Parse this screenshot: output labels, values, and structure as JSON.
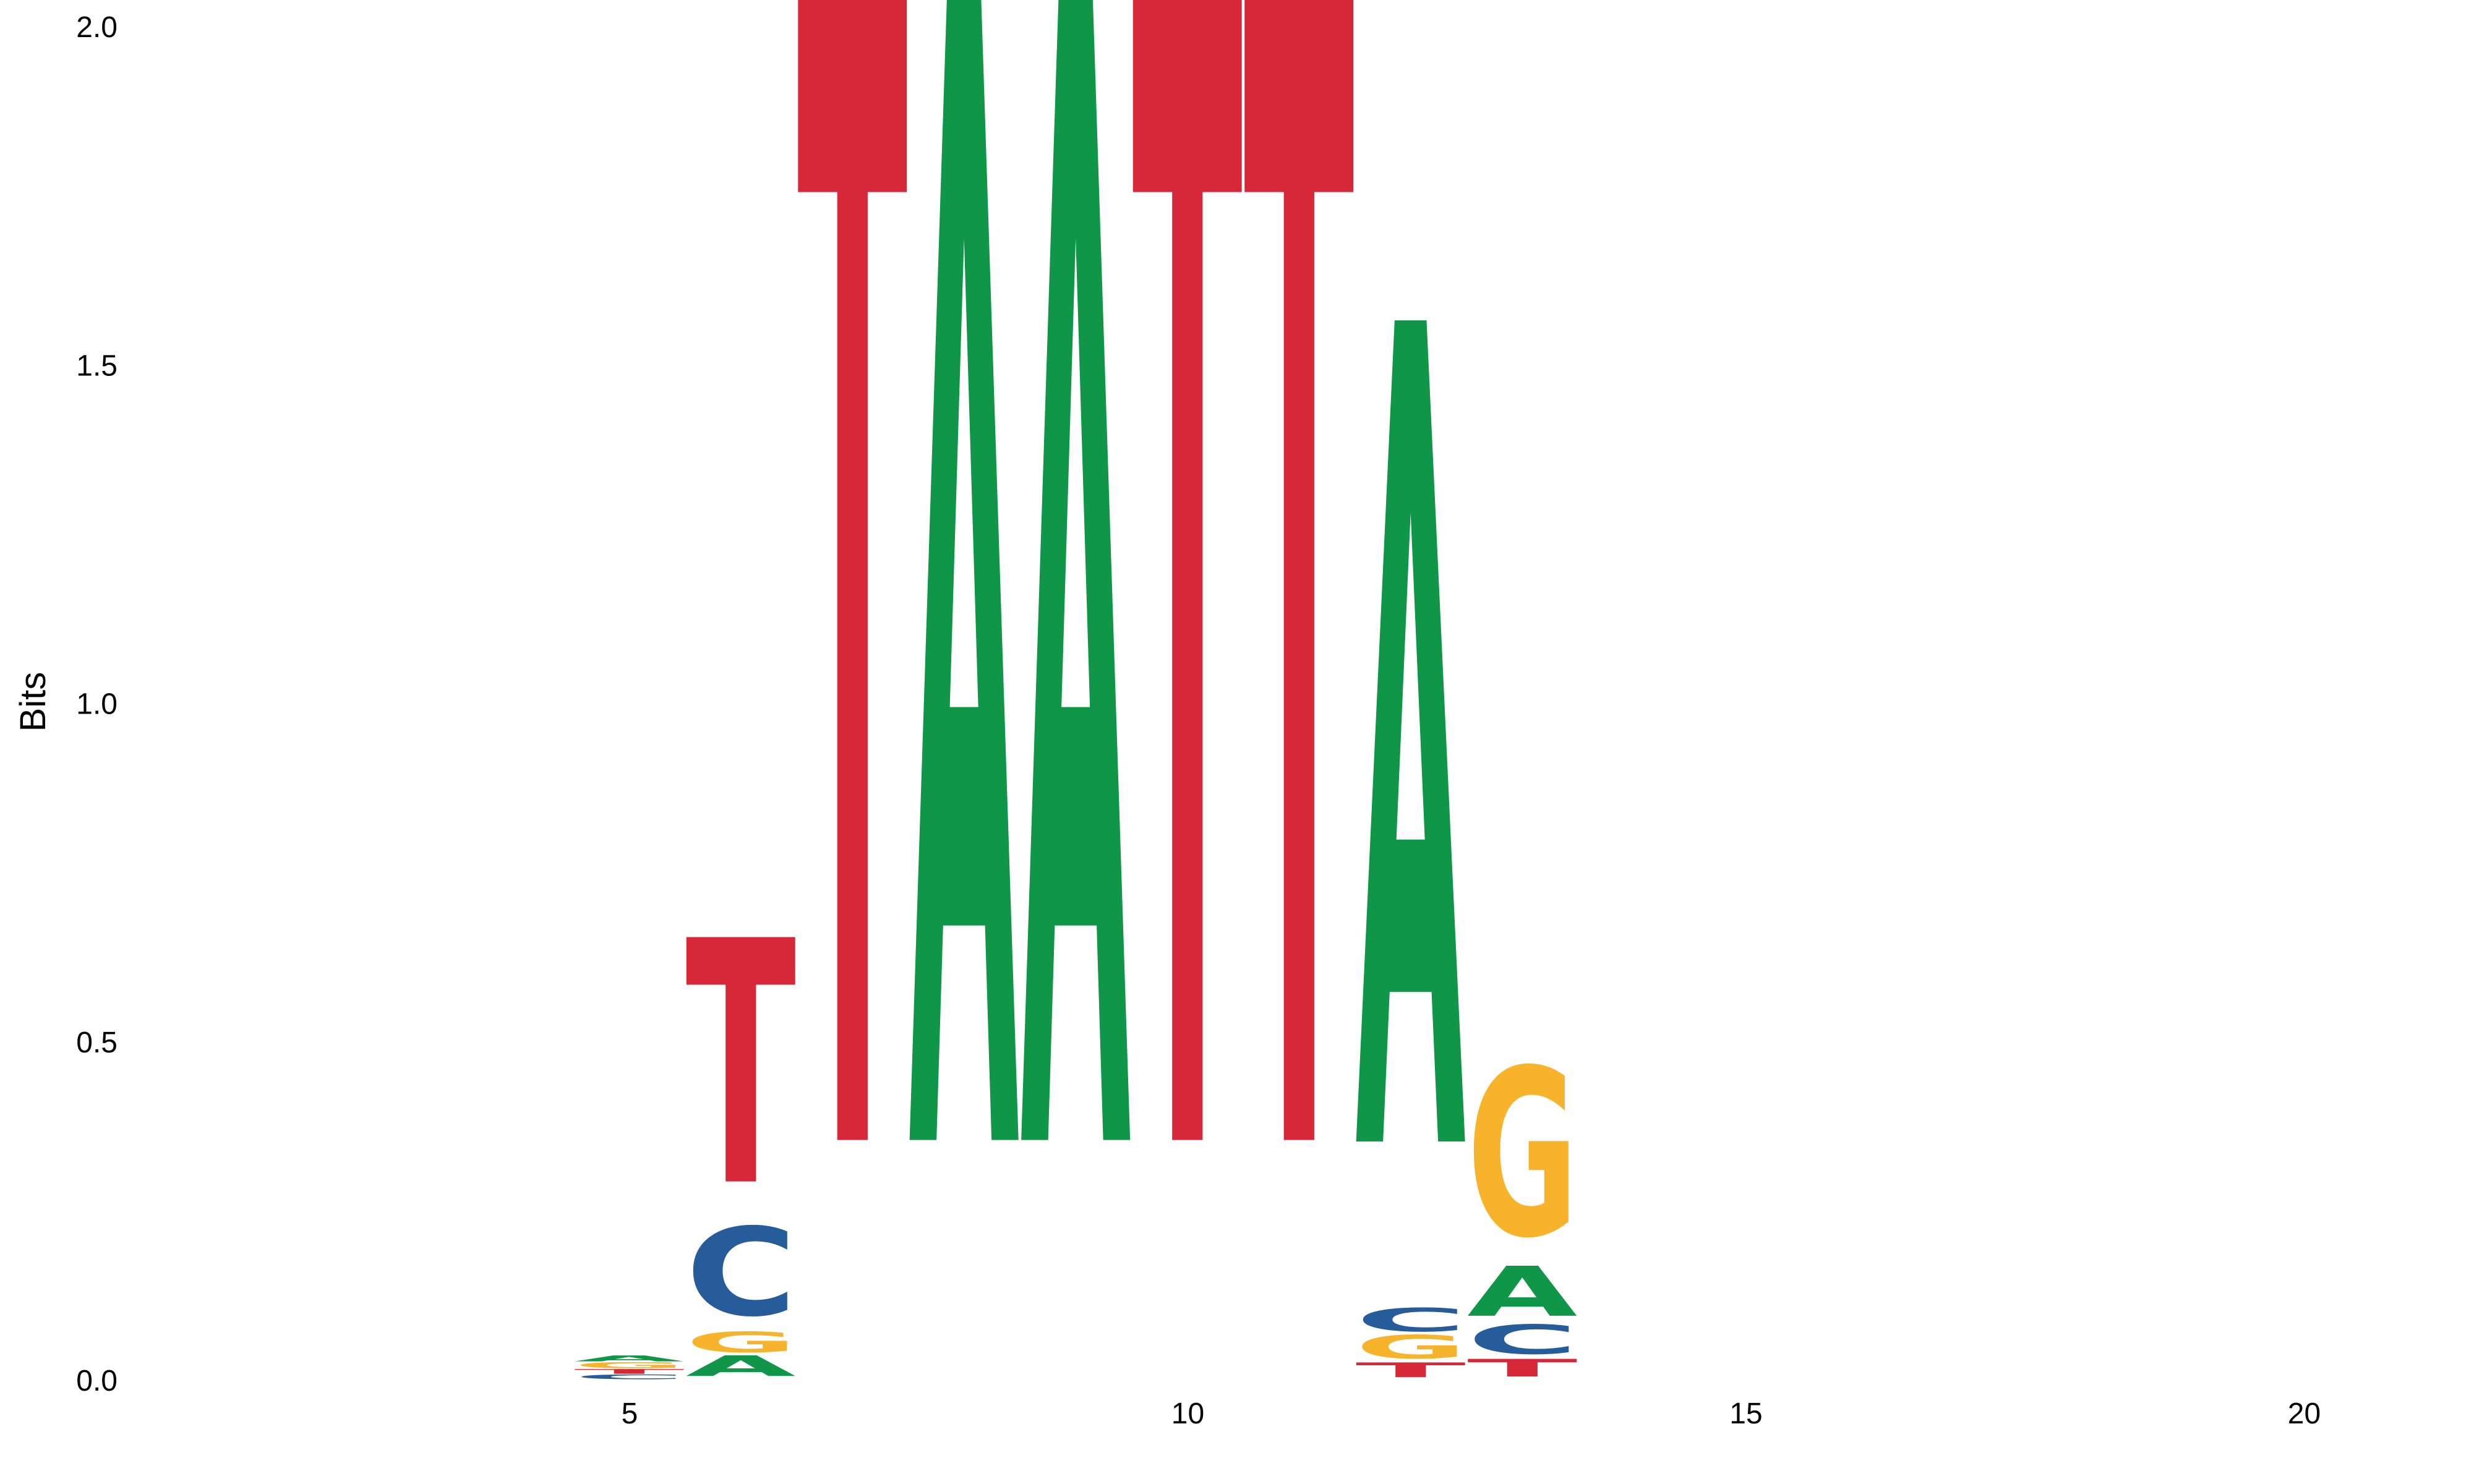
{
  "chart_data": {
    "type": "sequence-logo",
    "title": "",
    "xlabel": "",
    "ylabel": "Bits",
    "ylim": [
      0,
      2.0
    ],
    "xlim": [
      0.5,
      22.5
    ],
    "y_ticks": [
      0.0,
      0.5,
      1.0,
      1.5,
      2.0
    ],
    "y_tick_labels": [
      "0.0",
      "0.5",
      "1.0",
      "1.5",
      "2.0"
    ],
    "x_ticks": [
      5,
      10,
      15,
      20
    ],
    "x_tick_labels": [
      "5",
      "10",
      "15",
      "20"
    ],
    "grid": false,
    "colors": {
      "A": "#109648",
      "C": "#255C99",
      "G": "#F7B32B",
      "T": "#D62839"
    },
    "positions": [
      {
        "pos": 5,
        "letters": [
          {
            "base": "C",
            "bits": 0.008
          },
          {
            "base": "T",
            "bits": 0.008
          },
          {
            "base": "G",
            "bits": 0.01
          },
          {
            "base": "A",
            "bits": 0.01
          }
        ]
      },
      {
        "pos": 6,
        "letters": [
          {
            "base": "A",
            "bits": 0.035
          },
          {
            "base": "G",
            "bits": 0.035
          },
          {
            "base": "C",
            "bits": 0.15
          },
          {
            "base": "T",
            "bits": 0.415
          }
        ]
      },
      {
        "pos": 7,
        "letters": [
          {
            "base": "T",
            "bits": 2.0
          }
        ]
      },
      {
        "pos": 8,
        "letters": [
          {
            "base": "A",
            "bits": 2.0
          }
        ]
      },
      {
        "pos": 9,
        "letters": [
          {
            "base": "A",
            "bits": 2.0
          }
        ]
      },
      {
        "pos": 10,
        "letters": [
          {
            "base": "T",
            "bits": 2.0
          }
        ]
      },
      {
        "pos": 11,
        "letters": [
          {
            "base": "T",
            "bits": 2.0
          }
        ]
      },
      {
        "pos": 12,
        "letters": [
          {
            "base": "T",
            "bits": 0.025
          },
          {
            "base": "G",
            "bits": 0.04
          },
          {
            "base": "C",
            "bits": 0.04
          },
          {
            "base": "A",
            "bits": 1.395
          }
        ]
      },
      {
        "pos": 13,
        "letters": [
          {
            "base": "T",
            "bits": 0.03
          },
          {
            "base": "C",
            "bits": 0.05
          },
          {
            "base": "A",
            "bits": 0.085
          },
          {
            "base": "G",
            "bits": 0.285
          }
        ]
      }
    ]
  }
}
